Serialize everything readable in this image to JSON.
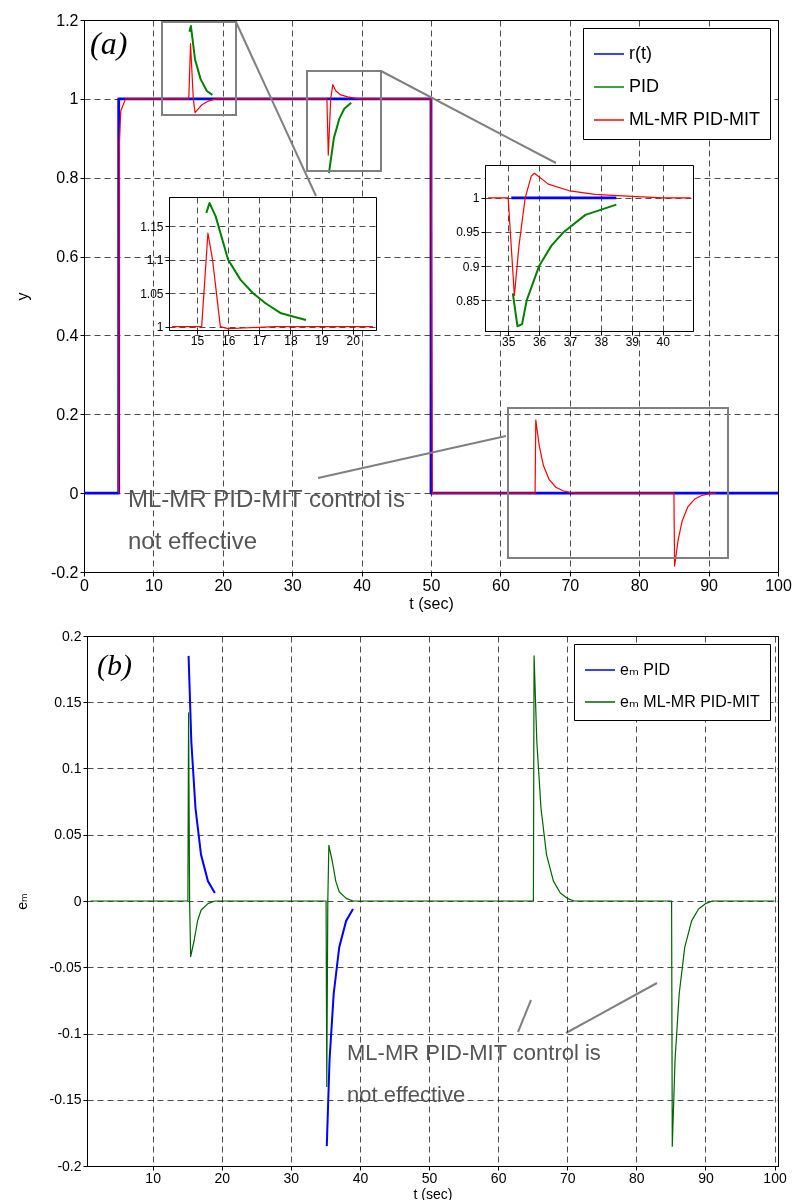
{
  "chart_data": [
    {
      "type": "line",
      "title": "(a)",
      "xlabel": "t (sec)",
      "ylabel": "y",
      "xlim": [
        0,
        100
      ],
      "ylim": [
        -0.2,
        1.2
      ],
      "xticks": [
        0,
        10,
        20,
        30,
        40,
        50,
        60,
        70,
        80,
        90,
        100
      ],
      "yticks": [
        -0.2,
        0,
        0.2,
        0.4,
        0.6,
        0.8,
        1,
        1.2
      ],
      "grid": true,
      "legend": "top right",
      "annotations": [
        "ML-MR PID-MIT control is not effective"
      ],
      "series": [
        {
          "name": "r(t)",
          "color": "#0000ff",
          "x": [
            0,
            5,
            5,
            50,
            50,
            100
          ],
          "values": [
            0,
            0,
            1,
            1,
            0,
            0
          ]
        },
        {
          "name": "PID",
          "color": "#008000",
          "x": [
            15.2,
            15.4,
            16,
            16.8,
            17.7,
            18.5,
            null,
            35.3,
            35.6,
            36,
            36.8,
            37.5,
            38.5
          ],
          "values": [
            1.17,
            1.185,
            1.1,
            1.05,
            1.02,
            1.01,
            null,
            0.812,
            0.85,
            0.9,
            0.95,
            0.975,
            0.99
          ]
        },
        {
          "name": "ML-MR PID-MIT",
          "color": "#ff0000",
          "x": [
            5,
            5.1,
            5.3,
            6,
            15.1,
            15.35,
            15.75,
            16,
            16.5,
            17,
            18,
            19,
            35,
            35.2,
            35.55,
            35.85,
            36.3,
            37,
            38,
            39,
            40,
            50,
            50.2,
            65,
            65.1,
            65.6,
            66.2,
            67,
            68,
            69,
            70,
            71,
            85,
            85.1,
            85.6,
            86.2,
            87,
            88,
            89,
            90,
            91
          ],
          "values": [
            0,
            0.89,
            0.97,
            1,
            1,
            1.14,
            1,
            0.965,
            0.975,
            0.985,
            0.995,
            1,
            1,
            0.857,
            1,
            1.036,
            1.02,
            1.01,
            1.005,
            1.002,
            1,
            1,
            0,
            0,
            0.185,
            0.12,
            0.07,
            0.035,
            0.015,
            0.006,
            0.002,
            0,
            0,
            -0.185,
            -0.12,
            -0.07,
            -0.035,
            -0.015,
            -0.006,
            -0.002,
            0
          ]
        }
      ]
    },
    {
      "type": "line",
      "xlim": [
        14.1,
        20.75
      ],
      "ylim": [
        0.995,
        1.194
      ],
      "xticks": [
        15,
        16,
        17,
        18,
        19,
        20
      ],
      "yticks": [
        1,
        1.05,
        1.1,
        1.15
      ],
      "grid": true,
      "series": [
        {
          "color": "#008000",
          "x": [
            15.3,
            15.4,
            15.6,
            16,
            16.4,
            16.8,
            17.2,
            17.7,
            18.5
          ],
          "values": [
            1.17,
            1.185,
            1.165,
            1.1,
            1.07,
            1.05,
            1.035,
            1.02,
            1.01
          ]
        },
        {
          "color": "#ff0000",
          "x": [
            14.2,
            15.15,
            15.35,
            15.5,
            15.75,
            16,
            16.5,
            17,
            17.5,
            20.65
          ],
          "values": [
            1,
            1,
            1.14,
            1.1,
            1,
            0.997,
            0.998,
            0.999,
            1,
            1
          ]
        }
      ]
    },
    {
      "type": "line",
      "xlim": [
        34.25,
        40.98
      ],
      "ylim": [
        0.805,
        1.048
      ],
      "xticks": [
        35,
        36,
        37,
        38,
        39,
        40
      ],
      "yticks": [
        0.85,
        0.9,
        0.95,
        1
      ],
      "grid": true,
      "series": [
        {
          "color": "#0000ff",
          "x": [
            35.1,
            38.5
          ],
          "values": [
            1,
            1
          ]
        },
        {
          "color": "#008000",
          "x": [
            35.15,
            35.3,
            35.45,
            35.6,
            36,
            36.4,
            36.8,
            37.5,
            38.5
          ],
          "values": [
            0.86,
            0.812,
            0.815,
            0.85,
            0.9,
            0.93,
            0.95,
            0.975,
            0.99
          ]
        },
        {
          "color": "#ff0000",
          "x": [
            34.35,
            35,
            35.2,
            35.35,
            35.55,
            35.75,
            35.85,
            36.3,
            37,
            37.8,
            39,
            40,
            40.9
          ],
          "values": [
            1,
            1,
            0.857,
            0.93,
            1,
            1.032,
            1.036,
            1.02,
            1.01,
            1.005,
            1.002,
            1,
            1
          ]
        }
      ]
    },
    {
      "type": "line",
      "title": "(b)",
      "xlabel": "t (sec)",
      "ylabel": "eₘ",
      "xlim": [
        0.5,
        100.5
      ],
      "ylim": [
        -0.2,
        0.2
      ],
      "xticks": [
        10,
        20,
        30,
        40,
        50,
        60,
        70,
        80,
        90,
        100
      ],
      "yticks": [
        -0.2,
        -0.15,
        -0.1,
        -0.05,
        0,
        0.05,
        0.1,
        0.15,
        0.2
      ],
      "grid": true,
      "legend": "top right",
      "annotations": [
        "ML-MR PID-MIT control is not effective"
      ],
      "series": [
        {
          "name": "eₘ PID",
          "color": "#0000ff",
          "x": [
            15.2,
            15.6,
            16.2,
            17,
            18,
            19,
            null,
            35.2,
            35.6,
            36.2,
            37,
            38,
            39
          ],
          "values": [
            0.185,
            0.12,
            0.07,
            0.035,
            0.015,
            0.006,
            null,
            -0.185,
            -0.12,
            -0.07,
            -0.035,
            -0.015,
            -0.006
          ]
        },
        {
          "name": "eₘ ML-MR PID-MIT",
          "color": "#006400",
          "x": [
            1,
            15.1,
            15.2,
            15.35,
            15.5,
            16,
            16.5,
            17,
            18,
            19,
            35.1,
            35.2,
            35.35,
            35.5,
            36,
            36.5,
            37,
            38,
            39,
            65.1,
            65.2,
            65.6,
            66.2,
            67,
            68,
            69,
            70,
            71,
            85.1,
            85.2,
            85.6,
            86.2,
            87,
            88,
            89,
            90,
            91,
            100
          ],
          "values": [
            0,
            0,
            0.142,
            0,
            -0.042,
            -0.03,
            -0.015,
            -0.007,
            -0.002,
            0,
            0,
            -0.14,
            0,
            0.042,
            0.03,
            0.015,
            0.007,
            0.002,
            0,
            0,
            0.185,
            0.12,
            0.07,
            0.035,
            0.015,
            0.006,
            0.002,
            0,
            0,
            -0.185,
            -0.12,
            -0.07,
            -0.035,
            -0.015,
            -0.006,
            -0.002,
            0,
            0
          ]
        }
      ]
    }
  ]
}
